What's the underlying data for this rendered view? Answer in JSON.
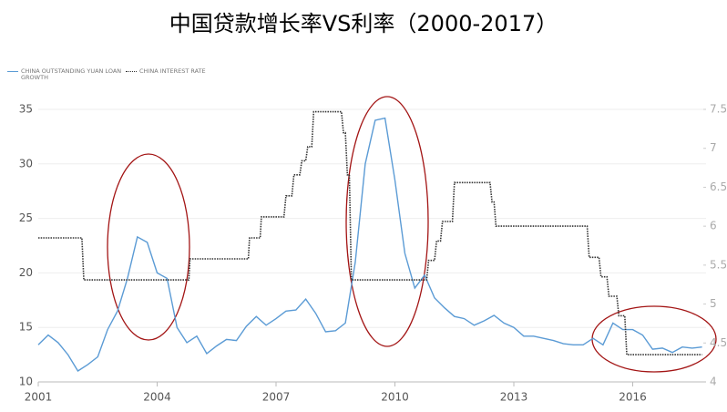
{
  "chart_data": {
    "type": "line",
    "title": "中国贷款增长率VS利率（2000-2017）",
    "xlim": [
      2001,
      2017.85
    ],
    "xticks": [
      2001,
      2004,
      2007,
      2010,
      2013,
      2016
    ],
    "ylim": [
      10,
      35
    ],
    "yticks": [
      10,
      15,
      20,
      25,
      30,
      35
    ],
    "y2lim": [
      4,
      7.5
    ],
    "y2ticks": [
      4,
      4.5,
      5,
      5.5,
      6,
      6.5,
      7,
      7.5
    ],
    "grid": true,
    "legend": "top-left",
    "series": [
      {
        "name": "CHINA OUTSTANDING YUAN LOAN GROWTH",
        "color": "#5b9bd5",
        "axis": "y",
        "style": "solid",
        "x": [
          2001.0,
          2001.25,
          2001.5,
          2001.75,
          2002.0,
          2002.25,
          2002.5,
          2002.75,
          2003.0,
          2003.25,
          2003.5,
          2003.75,
          2004.0,
          2004.25,
          2004.5,
          2004.75,
          2005.0,
          2005.25,
          2005.5,
          2005.75,
          2006.0,
          2006.25,
          2006.5,
          2006.75,
          2007.0,
          2007.25,
          2007.5,
          2007.75,
          2008.0,
          2008.25,
          2008.5,
          2008.75,
          2009.0,
          2009.25,
          2009.5,
          2009.75,
          2010.0,
          2010.25,
          2010.5,
          2010.75,
          2011.0,
          2011.25,
          2011.5,
          2011.75,
          2012.0,
          2012.25,
          2012.5,
          2012.75,
          2013.0,
          2013.25,
          2013.5,
          2013.75,
          2014.0,
          2014.25,
          2014.5,
          2014.75,
          2015.0,
          2015.25,
          2015.5,
          2015.75,
          2016.0,
          2016.25,
          2016.5,
          2016.75,
          2017.0,
          2017.25,
          2017.5,
          2017.75
        ],
        "values": [
          13.4,
          14.3,
          13.6,
          12.5,
          11.0,
          11.6,
          12.3,
          14.8,
          16.5,
          19.5,
          23.3,
          22.8,
          20.0,
          19.5,
          15.0,
          13.6,
          14.2,
          12.6,
          13.3,
          13.9,
          13.8,
          15.1,
          16.0,
          15.2,
          15.8,
          16.5,
          16.6,
          17.6,
          16.3,
          14.6,
          14.7,
          15.4,
          21.0,
          30.0,
          34.0,
          34.2,
          28.5,
          21.8,
          18.6,
          19.8,
          17.7,
          16.8,
          16.0,
          15.8,
          15.2,
          15.6,
          16.1,
          15.4,
          15.0,
          14.2,
          14.2,
          14.0,
          13.8,
          13.5,
          13.4,
          13.4,
          14.0,
          13.4,
          15.4,
          14.8,
          14.8,
          14.3,
          13.0,
          13.1,
          12.7,
          13.2,
          13.1,
          13.2
        ]
      },
      {
        "name": "CHINA INTEREST RATE",
        "color": "#333333",
        "axis": "y2",
        "style": "dotted",
        "x": [
          2001.0,
          2002.1,
          2002.15,
          2004.8,
          2004.83,
          2006.3,
          2006.33,
          2006.6,
          2006.63,
          2007.2,
          2007.25,
          2007.4,
          2007.45,
          2007.6,
          2007.65,
          2007.75,
          2007.8,
          2007.9,
          2007.95,
          2008.65,
          2008.7,
          2008.75,
          2008.8,
          2008.85,
          2008.9,
          2010.8,
          2010.85,
          2011.0,
          2011.05,
          2011.15,
          2011.2,
          2011.45,
          2011.5,
          2012.4,
          2012.45,
          2012.5,
          2012.55,
          2014.85,
          2014.9,
          2015.15,
          2015.2,
          2015.35,
          2015.4,
          2015.6,
          2015.65,
          2015.8,
          2015.85,
          2017.75
        ],
        "values": [
          5.85,
          5.85,
          5.31,
          5.31,
          5.58,
          5.58,
          5.85,
          5.85,
          6.12,
          6.12,
          6.39,
          6.39,
          6.66,
          6.66,
          6.84,
          6.84,
          7.02,
          7.02,
          7.47,
          7.47,
          7.2,
          7.2,
          6.66,
          6.66,
          5.31,
          5.31,
          5.56,
          5.56,
          5.81,
          5.81,
          6.06,
          6.06,
          6.56,
          6.56,
          6.31,
          6.31,
          6.0,
          6.0,
          5.6,
          5.6,
          5.35,
          5.35,
          5.1,
          5.1,
          4.85,
          4.85,
          4.35,
          4.35
        ]
      }
    ]
  }
}
